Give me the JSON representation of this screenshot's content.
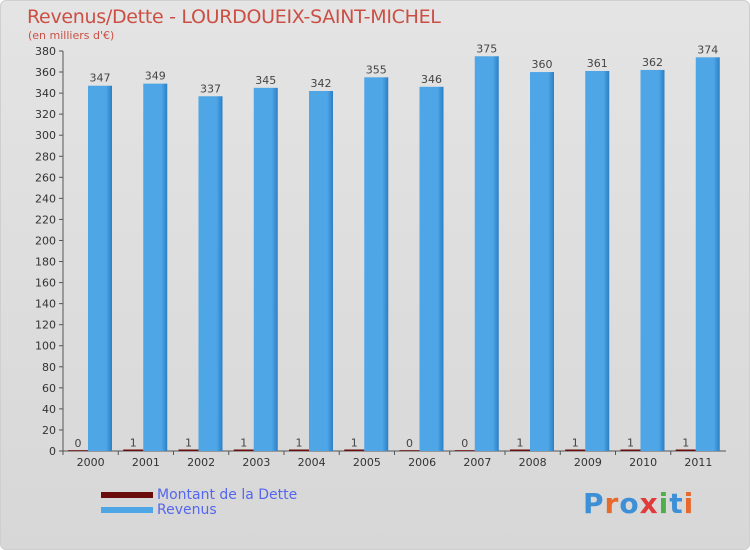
{
  "title": "Revenus/Dette - LOURDOUEIX-SAINT-MICHEL",
  "subtitle": "(en milliers d'€)",
  "brand": "Proxiti",
  "colors": {
    "debt": "#6b0d0d",
    "revenue": "#4fa6e6",
    "revenue_dark": "#2a7fc6",
    "title": "#cc4f44",
    "legend_text": "#5566ee"
  },
  "chart_data": {
    "type": "bar",
    "title": "Revenus/Dette - LOURDOUEIX-SAINT-MICHEL",
    "ylabel": "(en milliers d'€)",
    "xlabel": "",
    "ylim": [
      0,
      380
    ],
    "ytick_step": 20,
    "grid": false,
    "legend_position": "bottom-left",
    "categories": [
      "2000",
      "2001",
      "2002",
      "2003",
      "2004",
      "2005",
      "2006",
      "2007",
      "2008",
      "2009",
      "2010",
      "2011"
    ],
    "series": [
      {
        "name": "Montant de la Dette",
        "values": [
          0,
          1,
          1,
          1,
          1,
          1,
          0,
          0,
          1,
          1,
          1,
          1
        ]
      },
      {
        "name": "Revenus",
        "values": [
          347,
          349,
          337,
          345,
          342,
          355,
          346,
          375,
          360,
          361,
          362,
          374
        ]
      }
    ]
  }
}
